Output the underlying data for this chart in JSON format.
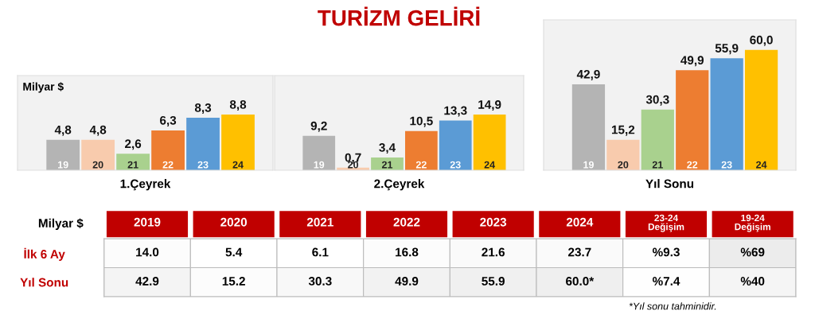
{
  "chart_data": [
    {
      "type": "bar",
      "ylabel": "Milyar $",
      "xlabel": "1.Çeyrek",
      "categories": [
        "19",
        "20",
        "21",
        "22",
        "23",
        "24"
      ],
      "values": [
        4.8,
        4.8,
        2.6,
        6.3,
        8.3,
        8.8
      ],
      "value_labels": [
        "4,8",
        "4,8",
        "2,6",
        "6,3",
        "8,3",
        "8,8"
      ],
      "colors": [
        "#b4b4b4",
        "#f8cbad",
        "#a9d18e",
        "#ed7d31",
        "#5b9bd5",
        "#ffc000"
      ]
    },
    {
      "type": "bar",
      "title": "TURİZM GELİRİ",
      "xlabel": "2.Çeyrek",
      "categories": [
        "19",
        "20",
        "21",
        "22",
        "23",
        "24"
      ],
      "values": [
        9.2,
        0.7,
        3.4,
        10.5,
        13.3,
        14.9
      ],
      "value_labels": [
        "9,2",
        "0,7",
        "3,4",
        "10,5",
        "13,3",
        "14,9"
      ],
      "colors": [
        "#b4b4b4",
        "#f8cbad",
        "#a9d18e",
        "#ed7d31",
        "#5b9bd5",
        "#ffc000"
      ]
    },
    {
      "type": "bar",
      "xlabel": "Yıl Sonu",
      "categories": [
        "19",
        "20",
        "21",
        "22",
        "23",
        "24"
      ],
      "values": [
        42.9,
        15.2,
        30.3,
        49.9,
        55.9,
        60.0
      ],
      "value_labels": [
        "42,9",
        "15,2",
        "30,3",
        "49,9",
        "55,9",
        "60,0"
      ],
      "colors": [
        "#b4b4b4",
        "#f8cbad",
        "#a9d18e",
        "#ed7d31",
        "#5b9bd5",
        "#ffc000"
      ]
    },
    {
      "type": "heatmap",
      "ylabel": "Milyar $",
      "cells": [
        [
          14.0,
          5.4,
          6.1,
          16.8,
          21.6,
          23.7,
          9.3,
          69
        ],
        [
          42.9,
          15.2,
          30.3,
          49.9,
          55.9,
          60.0,
          7.4,
          40
        ]
      ],
      "categories": [
        "2019",
        "2020",
        "2021",
        "2022",
        "2023",
        "2024",
        "23-24\nDeğişim",
        "19-24\nDeğişim"
      ],
      "y_categories": [
        "İlk 6 Ay",
        "Yıl Sonu"
      ],
      "cell_labels": [
        [
          "14.0",
          "5.4",
          "6.1",
          "16.8",
          "21.6",
          "23.7",
          "%9.3",
          "%69"
        ],
        [
          "42.9",
          "15.2",
          "30.3",
          "49.9",
          "55.9",
          "60.0*",
          "%7.4",
          "%40"
        ]
      ],
      "annotations": [
        "*Yıl sonu tahminidir."
      ]
    }
  ]
}
